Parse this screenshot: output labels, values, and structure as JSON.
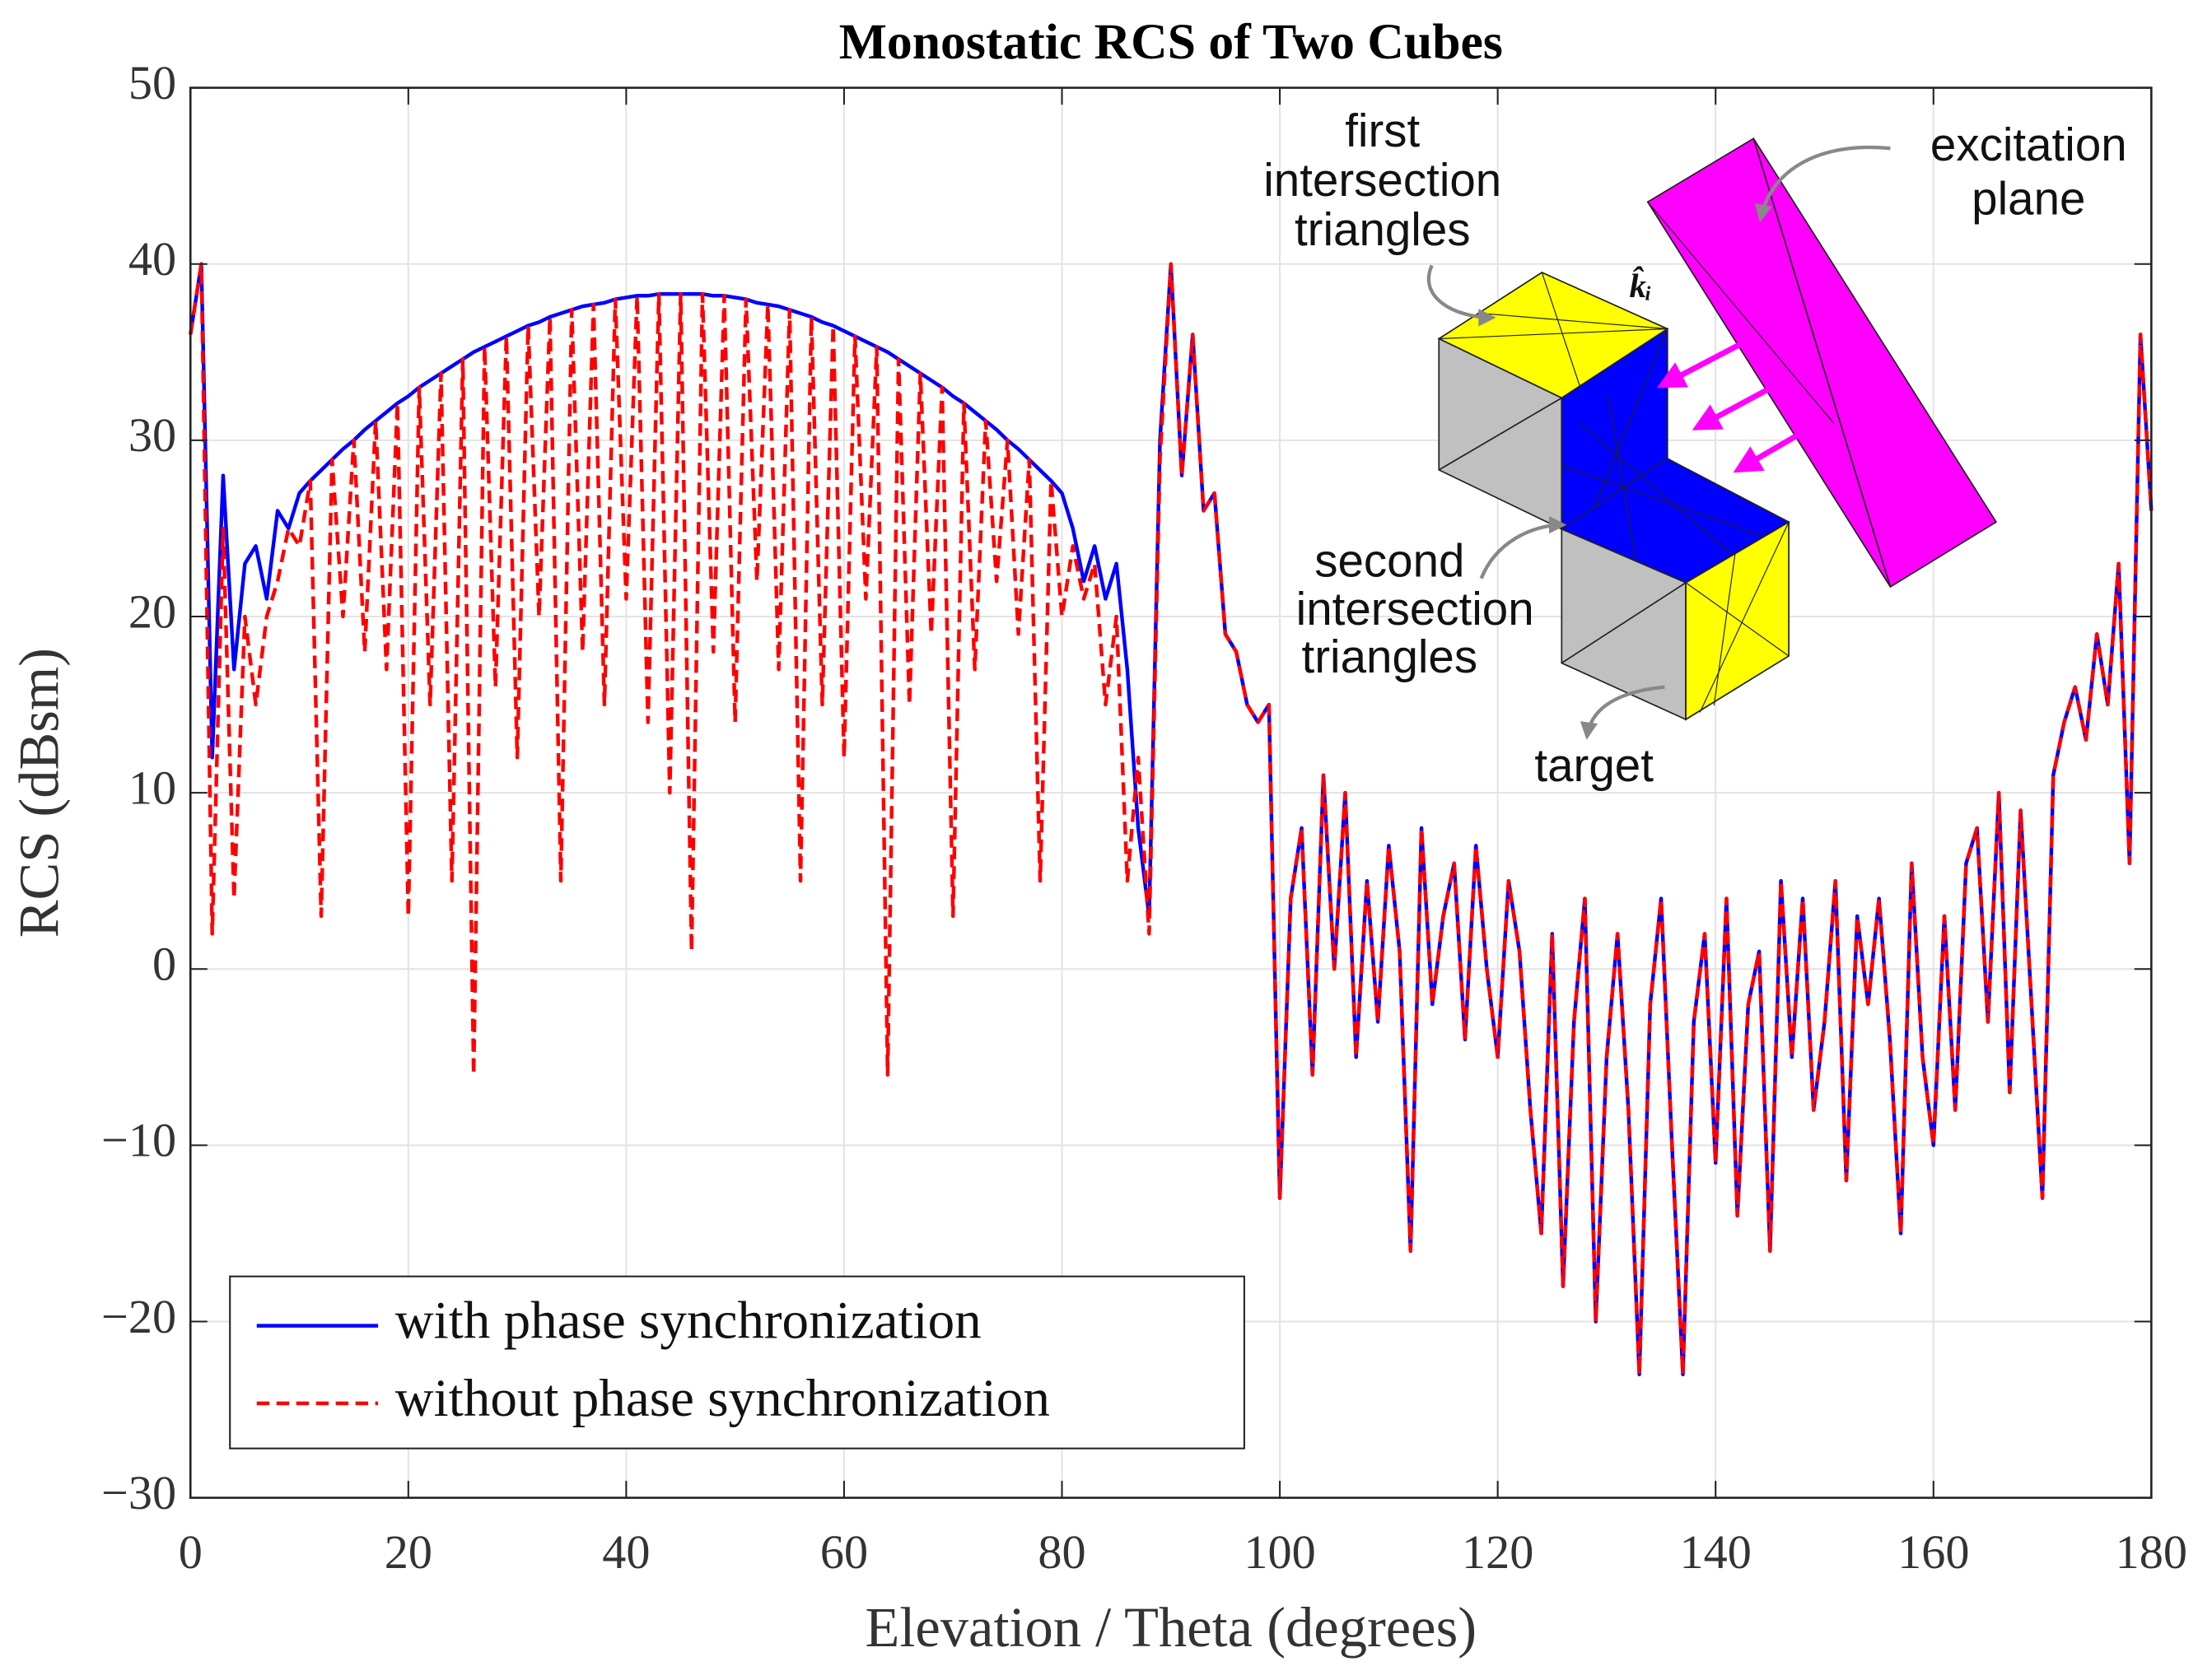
{
  "chart_data": {
    "type": "line",
    "title": "Monostatic RCS of Two Cubes",
    "xlabel": "Elevation / Theta (degrees)",
    "ylabel": "RCS (dBsm)",
    "xlim": [
      0,
      180
    ],
    "ylim": [
      -30,
      50
    ],
    "xticks": [
      0,
      20,
      40,
      60,
      80,
      100,
      120,
      140,
      160,
      180
    ],
    "yticks": [
      {
        "value": -30,
        "label": "−30"
      },
      {
        "value": -20,
        "label": "−20"
      },
      {
        "value": -10,
        "label": "−10"
      },
      0,
      10,
      20,
      30,
      40,
      50
    ],
    "grid": true,
    "legend": "lower left",
    "x": [
      0,
      1,
      2,
      3,
      4,
      5,
      6,
      7,
      8,
      9,
      10,
      11,
      12,
      13,
      14,
      15,
      16,
      17,
      18,
      19,
      20,
      21,
      22,
      23,
      24,
      25,
      26,
      27,
      28,
      29,
      30,
      31,
      32,
      33,
      34,
      35,
      36,
      37,
      38,
      39,
      40,
      41,
      42,
      43,
      44,
      45,
      46,
      47,
      48,
      49,
      50,
      51,
      52,
      53,
      54,
      55,
      56,
      57,
      58,
      59,
      60,
      61,
      62,
      63,
      64,
      65,
      66,
      67,
      68,
      69,
      70,
      71,
      72,
      73,
      74,
      75,
      76,
      77,
      78,
      79,
      80,
      81,
      82,
      83,
      84,
      85,
      86,
      87,
      88,
      89,
      90,
      91,
      92,
      93,
      94,
      95,
      96,
      97,
      98,
      99,
      100,
      101,
      102,
      103,
      104,
      105,
      106,
      107,
      108,
      109,
      110,
      111,
      112,
      113,
      114,
      115,
      116,
      117,
      118,
      119,
      120,
      121,
      122,
      123,
      124,
      125,
      126,
      127,
      128,
      129,
      130,
      131,
      132,
      133,
      134,
      135,
      136,
      137,
      138,
      139,
      140,
      141,
      142,
      143,
      144,
      145,
      146,
      147,
      148,
      149,
      150,
      151,
      152,
      153,
      154,
      155,
      156,
      157,
      158,
      159,
      160,
      161,
      162,
      163,
      164,
      165,
      166,
      167,
      168,
      169,
      170,
      171,
      172,
      173,
      174,
      175,
      176,
      177,
      178,
      179,
      180
    ],
    "series": [
      {
        "name": "with phase synchronization",
        "color": "#0000ff",
        "dashed": false,
        "values": [
          36,
          40,
          12,
          28,
          17,
          23,
          24,
          21,
          26,
          25,
          27,
          27.7,
          28.3,
          28.9,
          29.5,
          30,
          30.6,
          31.1,
          31.6,
          32.1,
          32.5,
          33,
          33.4,
          33.8,
          34.2,
          34.6,
          35,
          35.3,
          35.6,
          35.9,
          36.2,
          36.5,
          36.7,
          37,
          37.2,
          37.4,
          37.6,
          37.7,
          37.8,
          38,
          38.1,
          38.2,
          38.2,
          38.3,
          38.3,
          38.3,
          38.3,
          38.3,
          38.2,
          38.2,
          38.1,
          38,
          37.8,
          37.7,
          37.6,
          37.4,
          37.2,
          37,
          36.7,
          36.5,
          36.2,
          35.9,
          35.6,
          35.3,
          35,
          34.6,
          34.2,
          33.8,
          33.4,
          33,
          32.5,
          32.1,
          31.6,
          31.1,
          30.6,
          30,
          29.5,
          28.9,
          28.3,
          27.7,
          27,
          25,
          22,
          24,
          21,
          23,
          17,
          8,
          3,
          30,
          40,
          28,
          36,
          26,
          27,
          19,
          18,
          15,
          14,
          15,
          -13,
          4,
          8,
          -6,
          11,
          0,
          10,
          -5,
          5,
          -3,
          7,
          1,
          -16,
          8,
          -2,
          3,
          6,
          -4,
          7,
          0,
          -5,
          5,
          1,
          -8,
          -15,
          2,
          -18,
          -3,
          4,
          -20,
          -5,
          2,
          -8,
          -23,
          -2,
          4,
          -10,
          -23,
          -3,
          2,
          -11,
          4,
          -14,
          -2,
          1,
          -16,
          5,
          -5,
          4,
          -8,
          -3,
          5,
          -12,
          3,
          -2,
          4,
          -4,
          -15,
          6,
          -5,
          -10,
          3,
          -8,
          6,
          8,
          -3,
          10,
          -7,
          9,
          -2,
          -13,
          11,
          14,
          16,
          13,
          19,
          15,
          23,
          6,
          36,
          26
        ]
      },
      {
        "name": "without phase synchronization",
        "color": "#ff0000",
        "dashed": true,
        "values": [
          36,
          40,
          2,
          25,
          4,
          20,
          15,
          20,
          22,
          25,
          24,
          27.7,
          3,
          28.9,
          20,
          30,
          18,
          31.1,
          17,
          32.1,
          3,
          33,
          15,
          33.8,
          5,
          34.6,
          -6,
          35.3,
          16,
          35.9,
          12,
          36.5,
          20,
          37,
          5,
          37.4,
          18,
          37.7,
          15,
          38,
          21,
          38.2,
          14,
          38.3,
          10,
          38.3,
          1,
          38.3,
          18,
          38.2,
          14,
          38,
          22,
          37.7,
          17,
          37.4,
          5,
          37,
          15,
          36.5,
          12,
          35.9,
          21,
          35.3,
          -6,
          34.6,
          15,
          33.8,
          19,
          33,
          3,
          32.1,
          17,
          31.1,
          22,
          30,
          19,
          28.9,
          5,
          27.7,
          20,
          24,
          21,
          23,
          15,
          20,
          5,
          12,
          2,
          29,
          40,
          28,
          36,
          26,
          27,
          19,
          18,
          15,
          14,
          15,
          -13,
          4,
          8,
          -6,
          11,
          0,
          10,
          -5,
          5,
          -3,
          7,
          1,
          -16,
          8,
          -2,
          3,
          6,
          -4,
          7,
          0,
          -5,
          5,
          1,
          -8,
          -15,
          2,
          -18,
          -3,
          4,
          -20,
          -5,
          2,
          -8,
          -23,
          -2,
          4,
          -10,
          -23,
          -3,
          2,
          -11,
          4,
          -14,
          -2,
          1,
          -16,
          5,
          -5,
          4,
          -8,
          -3,
          5,
          -12,
          3,
          -2,
          4,
          -4,
          -15,
          6,
          -5,
          -10,
          3,
          -8,
          6,
          8,
          -3,
          10,
          -7,
          9,
          -2,
          -13,
          11,
          14,
          16,
          13,
          19,
          15,
          23,
          6,
          36,
          26
        ]
      }
    ],
    "annotations": [
      {
        "text": [
          "first",
          "intersection",
          "triangles"
        ]
      },
      {
        "text": [
          "excitation",
          "plane"
        ]
      },
      {
        "text": [
          "second",
          "intersection",
          "triangles"
        ]
      },
      {
        "text": [
          "target"
        ]
      },
      {
        "text": [
          "k̂ᵢ"
        ]
      }
    ]
  }
}
